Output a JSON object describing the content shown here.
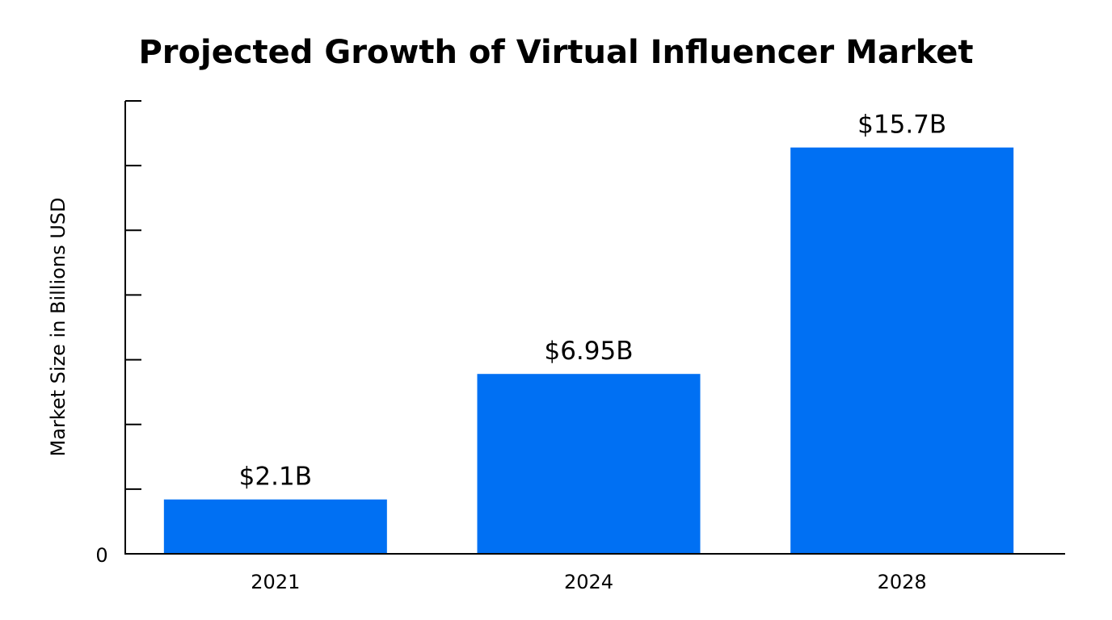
{
  "chart_data": {
    "type": "bar",
    "title": "Projected Growth of Virtual Influencer Market",
    "xlabel": "",
    "ylabel": "Market Size in Billions USD",
    "categories": [
      "2021",
      "2024",
      "2028"
    ],
    "values": [
      2.1,
      6.95,
      15.7
    ],
    "data_labels": [
      "$2.1B",
      "$6.95B",
      "$15.7B"
    ],
    "y_tick_labels": [
      "0"
    ],
    "ylim": [
      0,
      17.5
    ],
    "y_tick_step": 2.5,
    "grid": false,
    "bar_color": "#0070f3"
  }
}
